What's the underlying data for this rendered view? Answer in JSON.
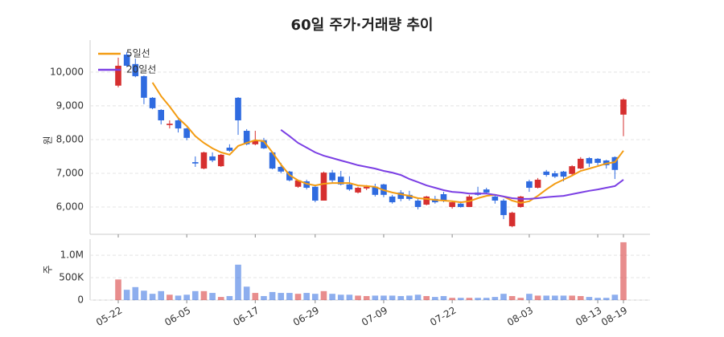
{
  "chart_data": [
    {
      "type": "candlestick",
      "title": "60일 주가·거래량 추이",
      "ylabel": "원",
      "up_color": "#d62f2f",
      "down_color": "#2f6be0",
      "open": [
        9600,
        10520,
        10240,
        9880,
        9240,
        8880,
        8430,
        8570,
        8330,
        7330,
        7140,
        7500,
        7210,
        7760,
        9240,
        8260,
        7860,
        7980,
        7620,
        7190,
        7050,
        6600,
        6760,
        6600,
        6190,
        7020,
        6900,
        6670,
        6430,
        6550,
        6600,
        6670,
        6310,
        6430,
        6360,
        6190,
        6070,
        6240,
        6380,
        6000,
        6100,
        6000,
        6430,
        6520,
        6310,
        6190,
        5430,
        6000,
        6760,
        6570,
        7050,
        7000,
        7050,
        6980,
        7140,
        7450,
        7430,
        7380,
        7480,
        8740
      ],
      "high": [
        10430,
        10600,
        10400,
        9900,
        9260,
        8900,
        8570,
        8600,
        8350,
        7500,
        7640,
        7620,
        7570,
        7860,
        9260,
        8310,
        8260,
        8050,
        7640,
        7310,
        7070,
        6810,
        6810,
        6640,
        7050,
        7100,
        7070,
        6910,
        6600,
        6650,
        6690,
        6690,
        6360,
        6500,
        6480,
        6240,
        6330,
        6330,
        6450,
        6190,
        6170,
        6360,
        6600,
        6570,
        6360,
        6240,
        5860,
        6330,
        6810,
        6860,
        7100,
        7070,
        7070,
        7240,
        7480,
        7480,
        7450,
        7400,
        7500,
        9220
      ],
      "low": [
        9550,
        10150,
        9850,
        9050,
        8900,
        8450,
        8330,
        8210,
        7980,
        7190,
        7120,
        7330,
        7190,
        7640,
        8140,
        7830,
        7830,
        7720,
        7120,
        7000,
        6760,
        6570,
        6520,
        6140,
        6190,
        6690,
        6640,
        6480,
        6400,
        6500,
        6310,
        6290,
        6100,
        6170,
        6190,
        5930,
        6050,
        6100,
        6140,
        5950,
        5980,
        6000,
        6330,
        6380,
        6100,
        5640,
        5400,
        5980,
        6450,
        6550,
        6900,
        6860,
        6760,
        6950,
        7120,
        7190,
        7240,
        7140,
        6830,
        8100
      ],
      "close": [
        10190,
        10190,
        9880,
        9240,
        8930,
        8570,
        8470,
        8330,
        8050,
        7290,
        7620,
        7380,
        7550,
        7670,
        8570,
        7860,
        7980,
        7740,
        7140,
        7050,
        6790,
        6790,
        6570,
        6190,
        7020,
        6790,
        6670,
        6520,
        6570,
        6600,
        6360,
        6360,
        6140,
        6240,
        6240,
        6000,
        6310,
        6140,
        6190,
        6140,
        6000,
        6310,
        6360,
        6430,
        6190,
        5760,
        5830,
        6310,
        6570,
        6810,
        6950,
        6900,
        6900,
        7210,
        7430,
        7290,
        7310,
        7240,
        7100,
        9190
      ],
      "series": [
        {
          "name": "5일선",
          "color": "#f39c12",
          "values": [
            null,
            null,
            null,
            null,
            9690,
            9290,
            8980,
            8640,
            8400,
            8100,
            7900,
            7740,
            7620,
            7550,
            7810,
            7900,
            7980,
            7950,
            7620,
            7260,
            6950,
            6790,
            6690,
            6640,
            6690,
            6710,
            6710,
            6710,
            6640,
            6620,
            6600,
            6500,
            6430,
            6380,
            6330,
            6260,
            6240,
            6210,
            6190,
            6170,
            6140,
            6170,
            6260,
            6330,
            6360,
            6310,
            6190,
            6120,
            6170,
            6330,
            6520,
            6690,
            6810,
            6930,
            7070,
            7140,
            7210,
            7290,
            7330,
            7670
          ]
        },
        {
          "name": "20일선",
          "color": "#7b3fe4",
          "values": [
            null,
            null,
            null,
            null,
            null,
            null,
            null,
            null,
            null,
            null,
            null,
            null,
            null,
            null,
            null,
            null,
            null,
            null,
            null,
            8290,
            8100,
            7900,
            7760,
            7620,
            7520,
            7450,
            7380,
            7310,
            7240,
            7190,
            7140,
            7070,
            7020,
            6950,
            6830,
            6740,
            6640,
            6570,
            6500,
            6450,
            6430,
            6400,
            6400,
            6400,
            6360,
            6310,
            6260,
            6240,
            6240,
            6260,
            6290,
            6310,
            6330,
            6380,
            6430,
            6480,
            6520,
            6570,
            6620,
            6810
          ]
        }
      ],
      "ylim": [
        5190,
        10950
      ],
      "yticks": [
        {
          "value": 6000,
          "label": "6,000"
        },
        {
          "value": 7000,
          "label": "7,000"
        },
        {
          "value": 8000,
          "label": "8,000"
        },
        {
          "value": 9000,
          "label": "9,000"
        },
        {
          "value": 10000,
          "label": "10,000"
        }
      ],
      "grid": true,
      "legend": "upper left"
    },
    {
      "type": "bar",
      "ylabel": "주",
      "categories": [
        "05-22",
        null,
        null,
        null,
        null,
        null,
        null,
        null,
        "06-05",
        null,
        null,
        null,
        null,
        null,
        null,
        null,
        "06-17",
        null,
        null,
        null,
        null,
        null,
        null,
        "06-29",
        null,
        null,
        null,
        null,
        null,
        null,
        null,
        "07-09",
        null,
        null,
        null,
        null,
        null,
        null,
        null,
        "07-22",
        null,
        null,
        null,
        null,
        null,
        null,
        null,
        null,
        "08-03",
        null,
        null,
        null,
        null,
        null,
        null,
        null,
        "08-13",
        null,
        null,
        "08-19"
      ],
      "values": [
        460000,
        230000,
        290000,
        210000,
        140000,
        200000,
        120000,
        100000,
        120000,
        200000,
        200000,
        160000,
        70000,
        90000,
        790000,
        300000,
        160000,
        90000,
        180000,
        160000,
        160000,
        140000,
        160000,
        140000,
        200000,
        140000,
        120000,
        120000,
        100000,
        90000,
        100000,
        100000,
        100000,
        90000,
        100000,
        120000,
        90000,
        70000,
        90000,
        50000,
        50000,
        50000,
        50000,
        50000,
        70000,
        140000,
        90000,
        50000,
        140000,
        100000,
        100000,
        100000,
        100000,
        100000,
        90000,
        70000,
        50000,
        50000,
        120000,
        1290000
      ],
      "ylim": [
        0,
        1360000
      ],
      "yticks": [
        0,
        {
          "value": 500000,
          "label": "500K"
        },
        {
          "value": 1000000,
          "label": "1.0M"
        }
      ],
      "grid": true
    }
  ]
}
